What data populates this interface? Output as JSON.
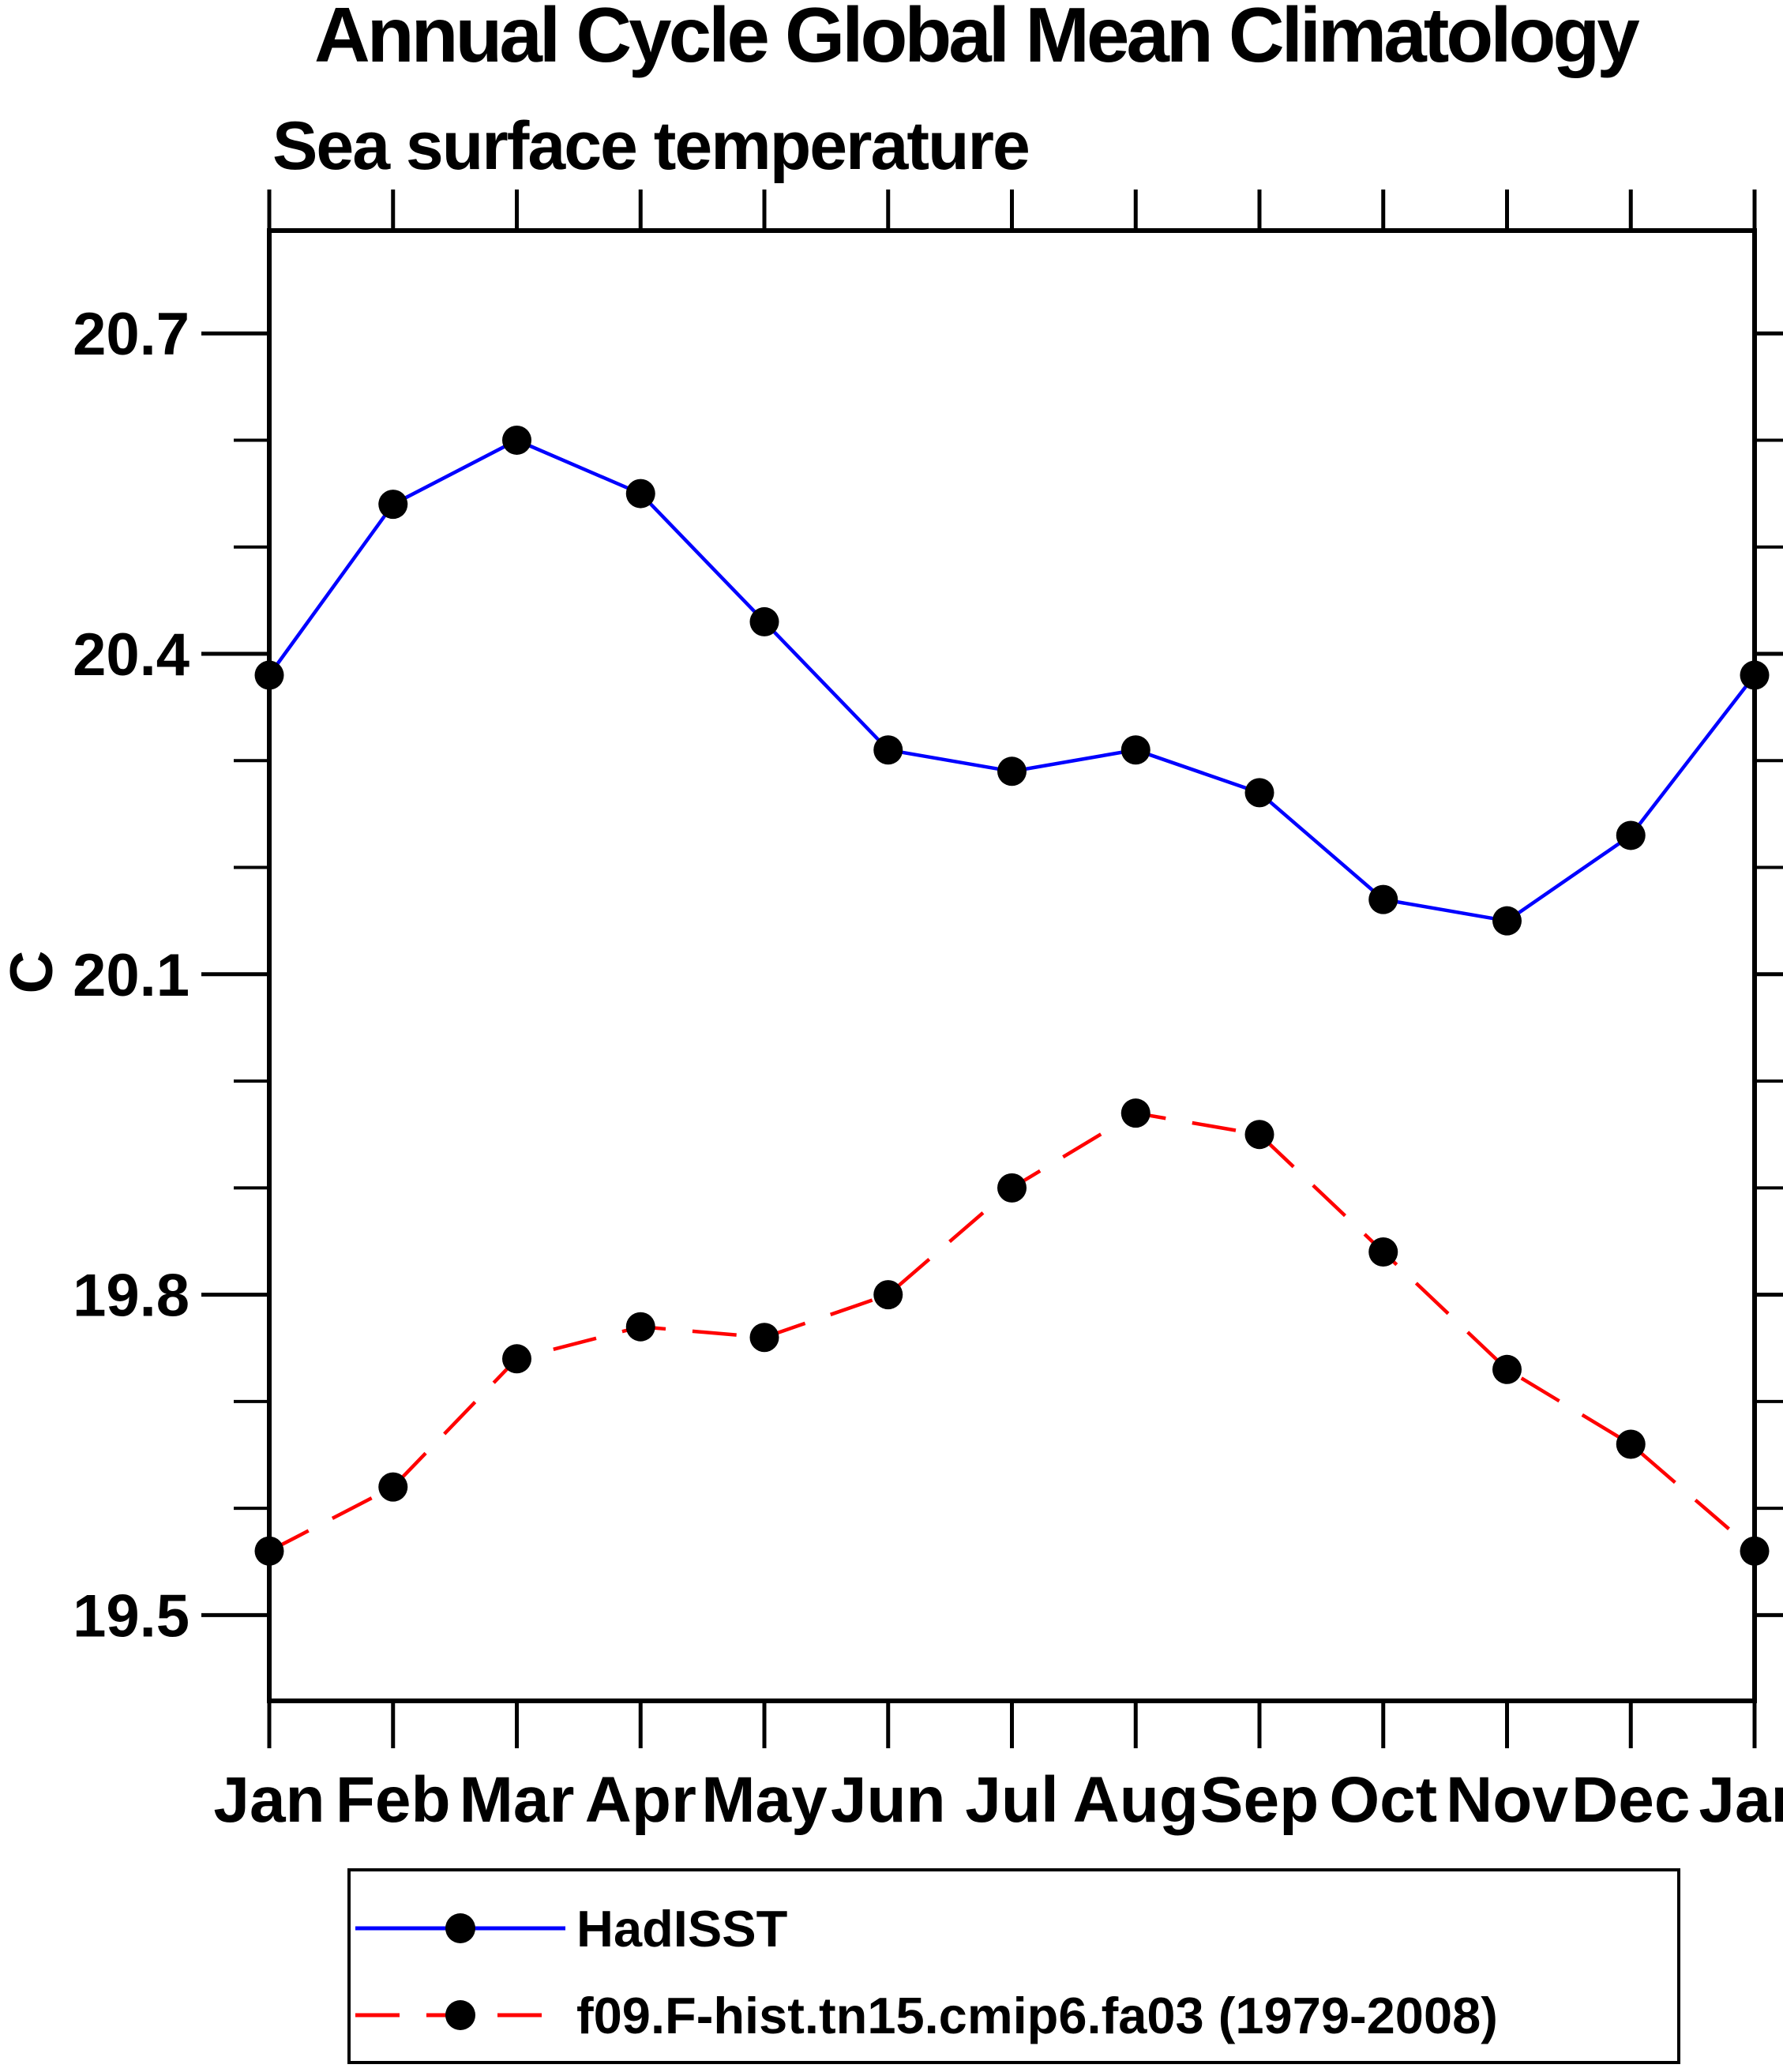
{
  "page": {
    "background_color": "#ffffff",
    "axis_color": "#000000",
    "text_color": "#000000"
  },
  "chart_data": {
    "type": "line",
    "title": "Annual Cycle Global Mean Climatology",
    "subtitle": "Sea surface temperature",
    "ylabel": "C",
    "xlabel": "",
    "x_categories": [
      "Jan",
      "Feb",
      "Mar",
      "Apr",
      "May",
      "Jun",
      "Jul",
      "Aug",
      "Sep",
      "Oct",
      "Nov",
      "Dec",
      "Jan"
    ],
    "y_tick_labels": [
      "20.7",
      "20.4",
      "20.1",
      "19.8",
      "19.5"
    ],
    "y_ticks_major": [
      20.7,
      20.4,
      20.1,
      19.8,
      19.5
    ],
    "y_ticks_minor": [
      20.6,
      20.5,
      20.3,
      20.2,
      20.0,
      19.9,
      19.7,
      19.6
    ],
    "ylim": [
      19.42,
      20.8
    ],
    "grid": "off",
    "legend_position": "bottom",
    "series": [
      {
        "name": "HadISST",
        "color": "#0000ff",
        "line_style": "solid",
        "marker": "filled-circle",
        "marker_color": "#000000",
        "values": [
          20.38,
          20.54,
          20.6,
          20.55,
          20.43,
          20.31,
          20.29,
          20.31,
          20.27,
          20.17,
          20.15,
          20.23,
          20.38
        ]
      },
      {
        "name": "f09.F-hist.tn15.cmip6.fa03 (1979-2008)",
        "color": "#ff0000",
        "line_style": "dashed",
        "marker": "filled-circle",
        "marker_color": "#000000",
        "values": [
          19.56,
          19.62,
          19.74,
          19.77,
          19.76,
          19.8,
          19.9,
          19.97,
          19.95,
          19.84,
          19.73,
          19.66,
          19.56
        ]
      }
    ]
  }
}
